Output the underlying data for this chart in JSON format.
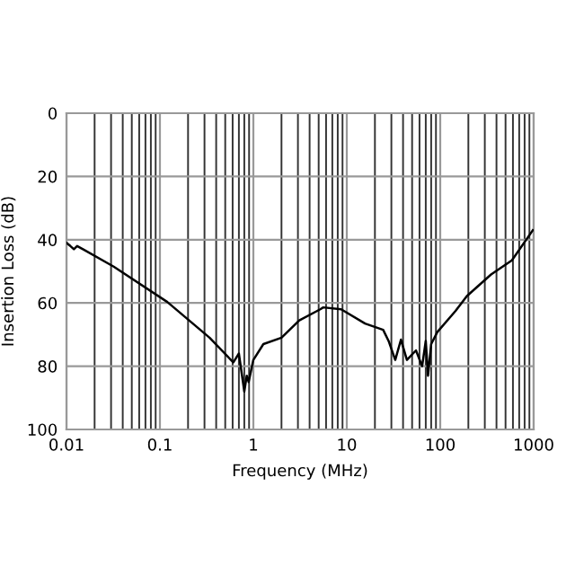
{
  "chart_data": {
    "type": "line",
    "xlabel": "Frequency (MHz)",
    "ylabel": "Insertion Loss (dB)",
    "log": "x",
    "xlim": [
      0.01,
      1000
    ],
    "xticks": [
      0.01,
      0.1,
      1,
      10,
      100,
      1000
    ],
    "ylim": [
      100,
      0
    ],
    "yticks": [
      0,
      20,
      40,
      60,
      80,
      100
    ],
    "grid": true,
    "line_style": "solid",
    "marker": "none",
    "series": [
      {
        "color": "#000000",
        "x": [
          0.01,
          0.011,
          0.012,
          0.013,
          0.015,
          0.032,
          0.12,
          0.34,
          0.61,
          0.7,
          0.8,
          0.85,
          0.89,
          1.0,
          1.28,
          2.0,
          3.1,
          5.2,
          5.6,
          8.7,
          15.7,
          24.5,
          28,
          33,
          38,
          44,
          55,
          64,
          70,
          74,
          80,
          93,
          146,
          193,
          350,
          585,
          980
        ],
        "values": [
          41,
          42,
          43,
          42,
          43,
          48.5,
          59.7,
          71,
          78.8,
          76,
          88,
          83,
          85,
          78,
          73,
          71,
          65.5,
          62,
          61.4,
          62,
          66.5,
          68.5,
          72,
          78,
          71.6,
          78,
          75,
          80,
          72,
          83,
          73,
          69.2,
          62.5,
          57.8,
          51,
          46.5,
          37
        ]
      }
    ]
  }
}
